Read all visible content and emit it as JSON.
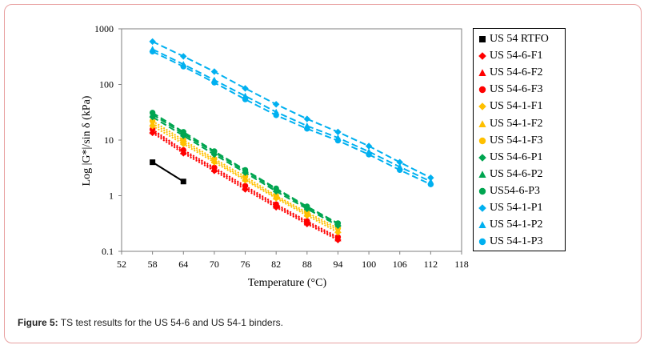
{
  "chart_data": {
    "type": "scatter",
    "xlabel": "Temperature (°C)",
    "ylabel": "Log |G*|/sin δ (kPa)",
    "xlim": [
      52,
      118
    ],
    "ylim": [
      0.1,
      1000
    ],
    "yscale": "log",
    "x_ticks": [
      "52",
      "58",
      "64",
      "70",
      "76",
      "82",
      "88",
      "94",
      "100",
      "106",
      "112",
      "118"
    ],
    "y_ticks": [
      "0.1",
      "1",
      "10",
      "100",
      "1000"
    ],
    "legend_position": "right",
    "series": [
      {
        "name": "US 54 RTFO",
        "color": "#000000",
        "marker": "square",
        "line": "solid",
        "x": [
          58,
          64
        ],
        "y": [
          4.0,
          1.8
        ]
      },
      {
        "name": "US 54-6-F1",
        "color": "#ff0000",
        "marker": "diamond",
        "line": "dotted",
        "x": [
          58,
          64,
          70,
          76,
          82,
          88,
          94
        ],
        "y": [
          13.5,
          5.8,
          2.8,
          1.3,
          0.62,
          0.31,
          0.16
        ]
      },
      {
        "name": "US 54-6-F2",
        "color": "#ff0000",
        "marker": "triangle",
        "line": "dotted",
        "x": [
          58,
          64,
          70,
          76,
          82,
          88,
          94
        ],
        "y": [
          14.5,
          6.2,
          3.0,
          1.4,
          0.66,
          0.33,
          0.17
        ]
      },
      {
        "name": "US 54-6-F3",
        "color": "#ff0000",
        "marker": "circle",
        "line": "dotted",
        "x": [
          58,
          64,
          70,
          76,
          82,
          88,
          94
        ],
        "y": [
          15.5,
          6.6,
          3.2,
          1.5,
          0.7,
          0.35,
          0.18
        ]
      },
      {
        "name": "US 54-1-F1",
        "color": "#ffc000",
        "marker": "diamond",
        "line": "dotted",
        "x": [
          58,
          64,
          70,
          76,
          82,
          88,
          94
        ],
        "y": [
          18,
          8.5,
          4.0,
          1.9,
          0.9,
          0.44,
          0.22
        ]
      },
      {
        "name": "US 54-1-F2",
        "color": "#ffc000",
        "marker": "triangle",
        "line": "dotted",
        "x": [
          58,
          64,
          70,
          76,
          82,
          88,
          94
        ],
        "y": [
          20,
          9.2,
          4.3,
          2.0,
          0.95,
          0.47,
          0.24
        ]
      },
      {
        "name": "US 54-1-F3",
        "color": "#ffc000",
        "marker": "circle",
        "line": "dotted",
        "x": [
          58,
          64,
          70,
          76,
          82,
          88,
          94
        ],
        "y": [
          22,
          10,
          4.6,
          2.2,
          1.0,
          0.5,
          0.26
        ]
      },
      {
        "name": "US 54-6-P1",
        "color": "#00a550",
        "marker": "diamond",
        "line": "dashed",
        "x": [
          58,
          64,
          70,
          76,
          82,
          88,
          94
        ],
        "y": [
          26,
          12,
          5.5,
          2.6,
          1.2,
          0.58,
          0.29
        ]
      },
      {
        "name": "US 54-6-P2",
        "color": "#00a550",
        "marker": "triangle",
        "line": "dashed",
        "x": [
          58,
          64,
          70,
          76,
          82,
          88,
          94
        ],
        "y": [
          29,
          13,
          6.0,
          2.8,
          1.3,
          0.62,
          0.31
        ]
      },
      {
        "name": "US54-6-P3",
        "color": "#00a550",
        "marker": "circle",
        "line": "dashed",
        "x": [
          58,
          64,
          70,
          76,
          82,
          88,
          94
        ],
        "y": [
          31,
          14,
          6.3,
          2.9,
          1.35,
          0.64,
          0.32
        ]
      },
      {
        "name": "US 54-1-P1",
        "color": "#00b0f0",
        "marker": "diamond",
        "line": "dashed",
        "x": [
          58,
          64,
          70,
          76,
          82,
          88,
          94,
          100,
          106,
          112
        ],
        "y": [
          590,
          320,
          170,
          85,
          44,
          24,
          14,
          7.8,
          4.0,
          2.1
        ]
      },
      {
        "name": "US 54-1-P2",
        "color": "#00b0f0",
        "marker": "triangle",
        "line": "dashed",
        "x": [
          58,
          64,
          70,
          76,
          82,
          88,
          94,
          100,
          106,
          112
        ],
        "y": [
          430,
          230,
          120,
          62,
          32,
          18,
          11,
          6.2,
          3.3,
          1.8
        ]
      },
      {
        "name": "US 54-1-P3",
        "color": "#00b0f0",
        "marker": "circle",
        "line": "dashed",
        "x": [
          58,
          64,
          70,
          76,
          82,
          88,
          94,
          100,
          106,
          112
        ],
        "y": [
          390,
          210,
          108,
          54,
          28,
          16,
          9.8,
          5.5,
          2.9,
          1.6
        ]
      }
    ]
  },
  "caption": {
    "label": "Figure 5:",
    "text": " TS test results for the US 54-6 and US 54-1 binders."
  }
}
